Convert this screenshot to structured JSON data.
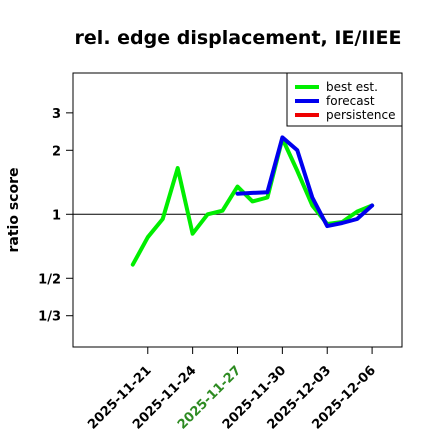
{
  "chart_data": {
    "type": "line",
    "title": "rel. edge displacement, IE/IIEE",
    "ylabel": "ratio score",
    "xlabel": "",
    "y_scale": "log2",
    "ylim": [
      0.2375,
      4.62
    ],
    "y_ticks": [
      {
        "value": 0.3333,
        "label": "1/3"
      },
      {
        "value": 0.5,
        "label": "1/2"
      },
      {
        "value": 1,
        "label": "1"
      },
      {
        "value": 2,
        "label": "2"
      },
      {
        "value": 3,
        "label": "3"
      }
    ],
    "reference_line": 1,
    "x_range": [
      "2025-11-16",
      "2025-12-08"
    ],
    "x_ticks": [
      {
        "date": "2025-11-21",
        "label": "2025-11-21",
        "color": "#000000"
      },
      {
        "date": "2025-11-24",
        "label": "2025-11-24",
        "color": "#000000"
      },
      {
        "date": "2025-11-27",
        "label": "2025-11-27",
        "color": "#2e8b22"
      },
      {
        "date": "2025-11-30",
        "label": "2025-11-30",
        "color": "#000000"
      },
      {
        "date": "2025-12-03",
        "label": "2025-12-03",
        "color": "#000000"
      },
      {
        "date": "2025-12-06",
        "label": "2025-12-06",
        "color": "#000000"
      }
    ],
    "legend": {
      "position": "top-right",
      "entries": [
        {
          "name": "best est.",
          "color": "#00ee00"
        },
        {
          "name": "forecast",
          "color": "#0000ee"
        },
        {
          "name": "persistence",
          "color": "#ee0000"
        }
      ]
    },
    "series": [
      {
        "name": "best est.",
        "color": "#00ee00",
        "points": [
          {
            "x": "2025-11-20",
            "y": 0.58
          },
          {
            "x": "2025-11-21",
            "y": 0.78
          },
          {
            "x": "2025-11-22",
            "y": 0.95
          },
          {
            "x": "2025-11-23",
            "y": 1.65
          },
          {
            "x": "2025-11-24",
            "y": 0.81
          },
          {
            "x": "2025-11-25",
            "y": 1.0
          },
          {
            "x": "2025-11-26",
            "y": 1.04
          },
          {
            "x": "2025-11-27",
            "y": 1.35
          },
          {
            "x": "2025-11-28",
            "y": 1.15
          },
          {
            "x": "2025-11-29",
            "y": 1.2
          },
          {
            "x": "2025-11-30",
            "y": 2.27
          },
          {
            "x": "2025-12-01",
            "y": 1.6
          },
          {
            "x": "2025-12-02",
            "y": 1.1
          },
          {
            "x": "2025-12-03",
            "y": 0.9
          },
          {
            "x": "2025-12-04",
            "y": 0.92
          },
          {
            "x": "2025-12-05",
            "y": 1.03
          },
          {
            "x": "2025-12-06",
            "y": 1.1
          }
        ]
      },
      {
        "name": "forecast",
        "color": "#0000ee",
        "points": [
          {
            "x": "2025-11-27",
            "y": 1.25
          },
          {
            "x": "2025-11-28",
            "y": 1.26
          },
          {
            "x": "2025-11-29",
            "y": 1.27
          },
          {
            "x": "2025-11-30",
            "y": 2.3
          },
          {
            "x": "2025-12-01",
            "y": 2.0
          },
          {
            "x": "2025-12-02",
            "y": 1.2
          },
          {
            "x": "2025-12-03",
            "y": 0.88
          },
          {
            "x": "2025-12-04",
            "y": 0.91
          },
          {
            "x": "2025-12-05",
            "y": 0.95
          },
          {
            "x": "2025-12-06",
            "y": 1.1
          }
        ]
      },
      {
        "name": "persistence",
        "color": "#ee0000",
        "points": []
      }
    ]
  }
}
